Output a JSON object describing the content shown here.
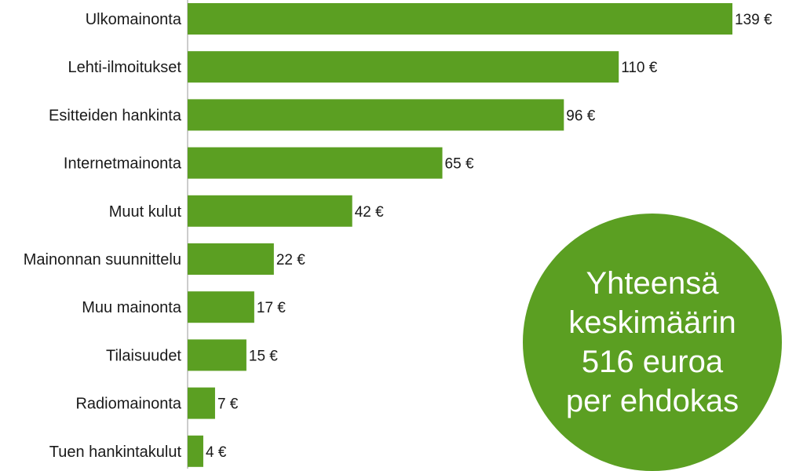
{
  "chart_data": {
    "type": "bar",
    "orientation": "horizontal",
    "categories": [
      "Ulkomainonta",
      "Lehti-ilmoitukset",
      "Esitteiden hankinta",
      "Internetmainonta",
      "Muut kulut",
      "Mainonnan suunnittelu",
      "Muu mainonta",
      "Tilaisuudet",
      "Radiomainonta",
      "Tuen hankintakulut"
    ],
    "values": [
      139,
      110,
      96,
      65,
      42,
      22,
      17,
      15,
      7,
      4
    ],
    "value_labels": [
      "139 €",
      "110 €",
      "96 €",
      "65 €",
      "42 €",
      "22 €",
      "17 €",
      "15 €",
      "7 €",
      "4 €"
    ],
    "bar_color": "#5b9f22",
    "title": "",
    "xlabel": "",
    "ylabel": "",
    "xlim": [
      0,
      139
    ],
    "grid": false
  },
  "summary": {
    "lines": [
      "Yhteensä",
      "keskimäärin",
      "516 euroa",
      "per ehdokas"
    ],
    "color": "#5b9f22"
  }
}
